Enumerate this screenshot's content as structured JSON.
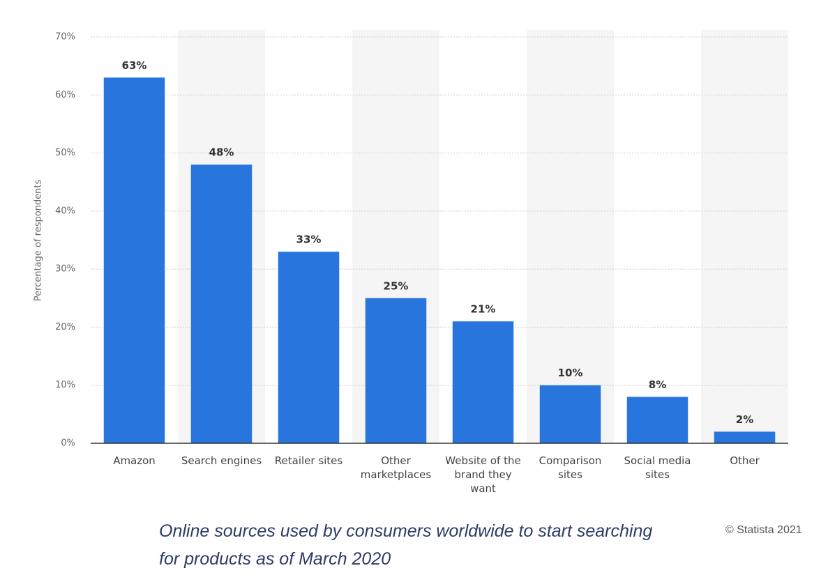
{
  "chart_data": {
    "type": "bar",
    "caption": "Online sources used by consumers worldwide to start searching for products as of March 2020",
    "credit": "© Statista 2021",
    "y_label": "Percentage of respondents",
    "categories": [
      "Amazon",
      "Search engines",
      "Retailer sites",
      "Other marketplaces",
      "Website of the brand they want",
      "Comparison sites",
      "Social media sites",
      "Other"
    ],
    "values": [
      63,
      48,
      33,
      25,
      21,
      10,
      8,
      2
    ],
    "value_labels": [
      "63%",
      "48%",
      "33%",
      "25%",
      "21%",
      "10%",
      "8%",
      "2%"
    ],
    "color": "#2875de",
    "ylim": [
      0,
      70
    ],
    "yticks": [
      {
        "value": 0,
        "label": "0%"
      },
      {
        "value": 10,
        "label": "10%"
      },
      {
        "value": 20,
        "label": "20%"
      },
      {
        "value": 30,
        "label": "30%"
      },
      {
        "value": 40,
        "label": "40%"
      },
      {
        "value": 50,
        "label": "50%"
      },
      {
        "value": 60,
        "label": "60%"
      },
      {
        "value": 70,
        "label": "70%"
      }
    ],
    "grid": true
  }
}
